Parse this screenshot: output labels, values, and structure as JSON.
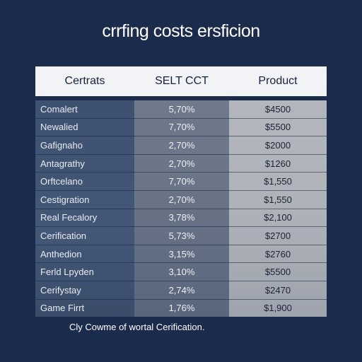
{
  "title": "crrfing costs ersficion",
  "table": {
    "headers": [
      "Certrats",
      "SELT CCT",
      "Product"
    ],
    "rows": [
      {
        "name": "Comalert",
        "pct": "5,70%",
        "price": "$4500"
      },
      {
        "name": "Newalied",
        "pct": "7,70%",
        "price": "$5500"
      },
      {
        "name": "Gafignaho",
        "pct": "2,70%",
        "price": "$2000"
      },
      {
        "name": "Antagrathy",
        "pct": "2,70%",
        "price": "$1260"
      },
      {
        "name": "Orftcelano",
        "pct": "7,70%",
        "price": "$1,550"
      },
      {
        "name": "Cestigration",
        "pct": "2,70%",
        "price": "$1,550"
      },
      {
        "name": "Real Fecalory",
        "pct": "3,78%",
        "price": "$2,100"
      },
      {
        "name": "Cerification",
        "pct": "5,73%",
        "price": "$2700"
      },
      {
        "name": "Anthedion",
        "pct": "3,15%",
        "price": "$2760"
      },
      {
        "name": "Ferld Lpyden",
        "pct": "3,10%",
        "price": "$5500"
      },
      {
        "name": "Cerifystay",
        "pct": "2,74%",
        "price": "$2470"
      },
      {
        "name": "Game Firrt",
        "pct": "1,76%",
        "price": "$1,900"
      }
    ]
  },
  "footnote": "Cly Cowme of wortal Cerification."
}
